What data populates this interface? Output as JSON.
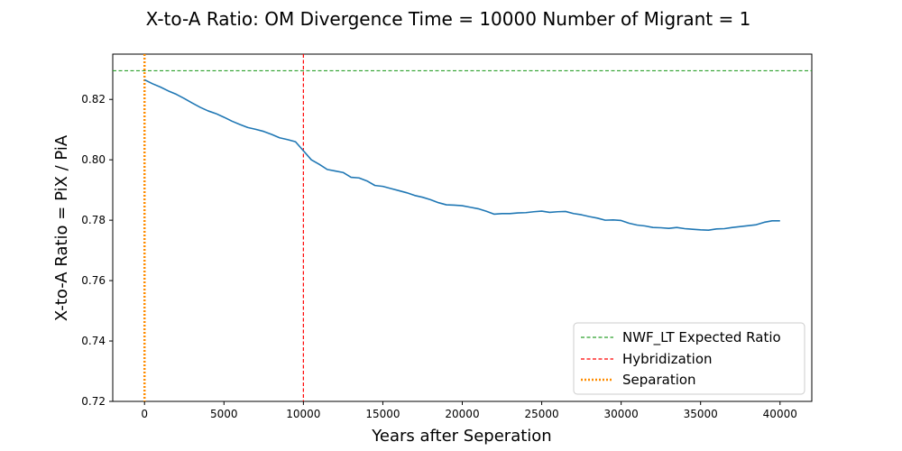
{
  "chart_data": {
    "type": "line",
    "title": "X-to-A Ratio: OM Divergence Time = 10000  Number of Migrant = 1",
    "xlabel": "Years after Seperation",
    "ylabel": "X-to-A Ratio = PiX / PiA",
    "xlim": [
      -2000,
      42000
    ],
    "ylim": [
      0.72,
      0.835
    ],
    "xticks": [
      0,
      5000,
      10000,
      15000,
      20000,
      25000,
      30000,
      35000,
      40000
    ],
    "xtick_labels": [
      "0",
      "5000",
      "10000",
      "15000",
      "20000",
      "25000",
      "30000",
      "35000",
      "40000"
    ],
    "yticks": [
      0.72,
      0.74,
      0.76,
      0.78,
      0.8,
      0.82
    ],
    "ytick_labels": [
      "0.72",
      "0.74",
      "0.76",
      "0.78",
      "0.80",
      "0.82"
    ],
    "grid": false,
    "legend_position": "lower-right",
    "series": [
      {
        "color": "#1f77b4",
        "x": [
          0,
          500,
          1000,
          1500,
          2000,
          2500,
          3000,
          3500,
          4000,
          4500,
          5000,
          5500,
          6000,
          6500,
          7000,
          7500,
          8000,
          8500,
          9000,
          9500,
          10000,
          10500,
          11000,
          11500,
          12000,
          12500,
          13000,
          13500,
          14000,
          14500,
          15000,
          15500,
          16000,
          16500,
          17000,
          17500,
          18000,
          18500,
          19000,
          19500,
          20000,
          20500,
          21000,
          21500,
          22000,
          22500,
          23000,
          23500,
          24000,
          24500,
          25000,
          25500,
          26000,
          26500,
          27000,
          27500,
          28000,
          28500,
          29000,
          29500,
          30000,
          30500,
          31000,
          31500,
          32000,
          32500,
          33000,
          33500,
          34000,
          34500,
          35000,
          35500,
          36000,
          36500,
          37000,
          37500,
          38000,
          38500,
          39000,
          39500,
          40000
        ],
        "y": [
          0.8265,
          0.8252,
          0.8241,
          0.8228,
          0.8217,
          0.8203,
          0.8188,
          0.8174,
          0.8162,
          0.8153,
          0.8141,
          0.8128,
          0.8117,
          0.8107,
          0.8101,
          0.8094,
          0.8084,
          0.8073,
          0.8067,
          0.806,
          0.803,
          0.8,
          0.7985,
          0.7968,
          0.7963,
          0.7958,
          0.7942,
          0.794,
          0.793,
          0.7915,
          0.7912,
          0.7905,
          0.7898,
          0.7891,
          0.7882,
          0.7876,
          0.7868,
          0.7858,
          0.7851,
          0.785,
          0.7848,
          0.7843,
          0.7838,
          0.783,
          0.782,
          0.7822,
          0.7822,
          0.7824,
          0.7825,
          0.7828,
          0.783,
          0.7826,
          0.7828,
          0.7829,
          0.7822,
          0.7818,
          0.7812,
          0.7807,
          0.78,
          0.7801,
          0.7799,
          0.779,
          0.7784,
          0.7781,
          0.7776,
          0.7775,
          0.7773,
          0.7776,
          0.7772,
          0.777,
          0.7768,
          0.7767,
          0.7771,
          0.7772,
          0.7776,
          0.7779,
          0.7782,
          0.7785,
          0.7793,
          0.7798,
          0.7798
        ]
      }
    ],
    "reference_lines": [
      {
        "orientation": "horizontal",
        "value": 0.8295,
        "color": "#2ca02c",
        "style": "dashed",
        "label": "NWF_LT Expected Ratio"
      },
      {
        "orientation": "vertical",
        "value": 10000,
        "color": "#ff0000",
        "style": "dashed",
        "label": "Hybridization"
      },
      {
        "orientation": "vertical",
        "value": 0,
        "color": "#ff8c00",
        "style": "dotted",
        "label": "Separation"
      }
    ],
    "legend": [
      "NWF_LT Expected Ratio",
      "Hybridization",
      "Separation"
    ]
  }
}
